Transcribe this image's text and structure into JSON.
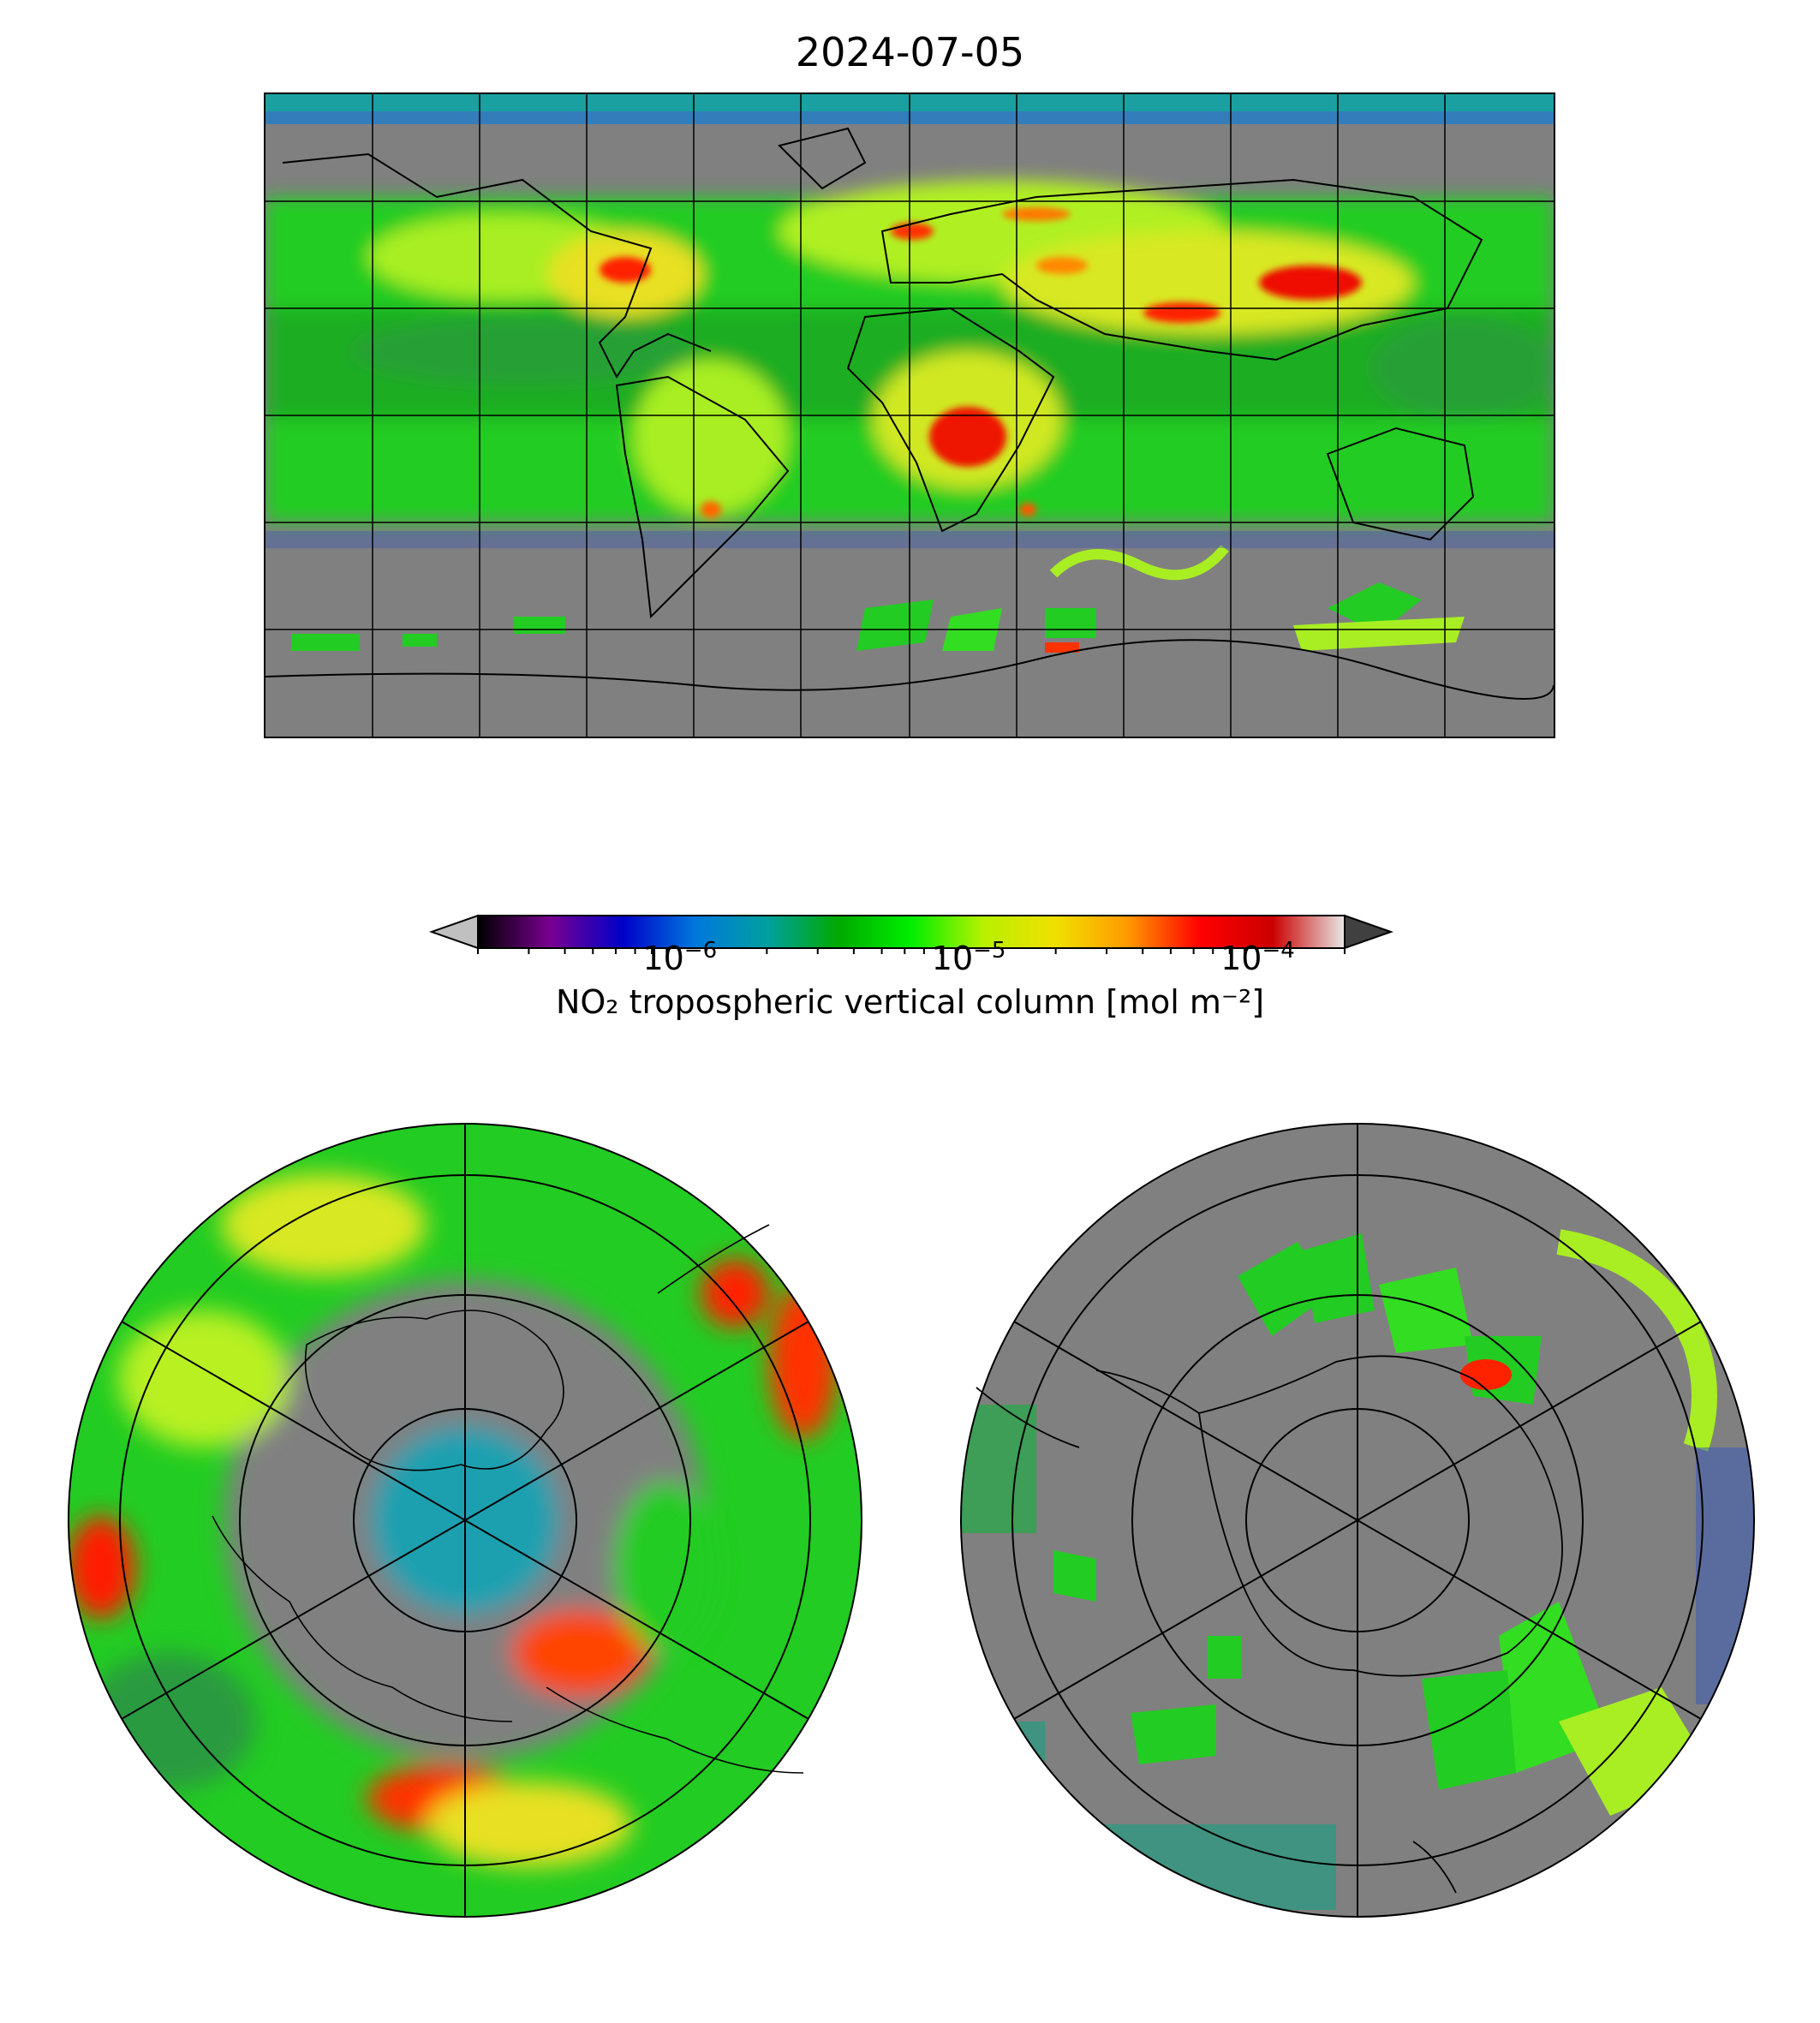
{
  "title": "2024-07-05",
  "colorbar": {
    "label": "NO₂ tropospheric vertical column [mol m⁻²]",
    "scale": "log",
    "range": [
      2e-07,
      0.0002
    ],
    "extend": "both",
    "ticks": [
      {
        "base": "10",
        "exp": "−6",
        "value": 1e-06
      },
      {
        "base": "10",
        "exp": "−5",
        "value": 1e-05
      },
      {
        "base": "10",
        "exp": "−4",
        "value": 0.0001
      }
    ],
    "colors": [
      "#000000",
      "#7a0090",
      "#0000c8",
      "#0077dd",
      "#00a0a0",
      "#00aa00",
      "#00ee00",
      "#b8f000",
      "#f0e000",
      "#ff9900",
      "#ff0000",
      "#cc0000",
      "#e8e8e8"
    ],
    "under_color": "#c0c0c0",
    "over_color": "#404040"
  },
  "maps": [
    {
      "name": "global",
      "projection": "plate-carree",
      "missing_color": "#808080",
      "gridlines": true
    },
    {
      "name": "north-polar",
      "projection": "north-polar-stereographic",
      "missing_color": "#808080",
      "gridlines": true
    },
    {
      "name": "south-polar",
      "projection": "south-polar-stereographic",
      "missing_color": "#808080",
      "gridlines": true
    }
  ]
}
